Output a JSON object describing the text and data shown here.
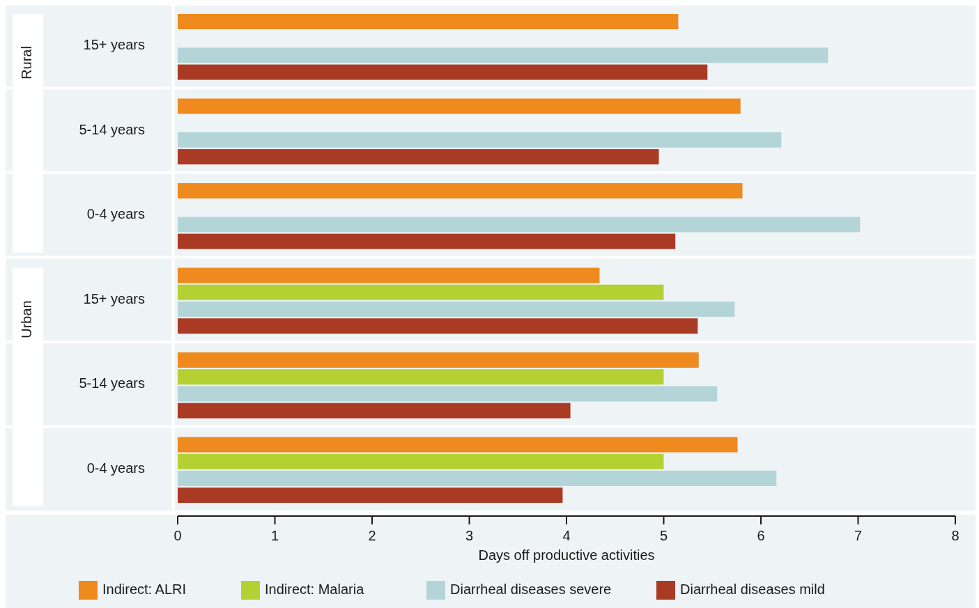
{
  "chart_data": {
    "type": "bar",
    "orientation": "horizontal",
    "xlabel": "Days off productive activities",
    "categories": [
      "15+ years",
      "5-14 years",
      "0-4 years",
      "15+ years",
      "5-14 years",
      "0-4 years"
    ],
    "annotations": [
      "Rural",
      "Urban"
    ],
    "series": [
      {
        "name": "Indirect: ALRI",
        "color": "#ee8a1e",
        "values": [
          5.15,
          5.79,
          5.81,
          4.34,
          5.36,
          5.76
        ]
      },
      {
        "name": "Indirect: Malaria",
        "color": "#b5d033",
        "values": [
          null,
          null,
          null,
          5.0,
          5.0,
          5.0
        ]
      },
      {
        "name": "Diarrheal diseases severe",
        "color": "#b3d5d8",
        "values": [
          6.69,
          6.21,
          7.02,
          5.73,
          5.55,
          6.16
        ]
      },
      {
        "name": "Diarrheal diseases mild",
        "color": "#a93a23",
        "values": [
          5.45,
          4.95,
          5.12,
          5.35,
          4.04,
          3.96
        ]
      }
    ],
    "xlim": [
      0,
      8
    ],
    "xticks": [
      0,
      1,
      2,
      3,
      4,
      5,
      6,
      7,
      8
    ],
    "legend": "bottom"
  }
}
